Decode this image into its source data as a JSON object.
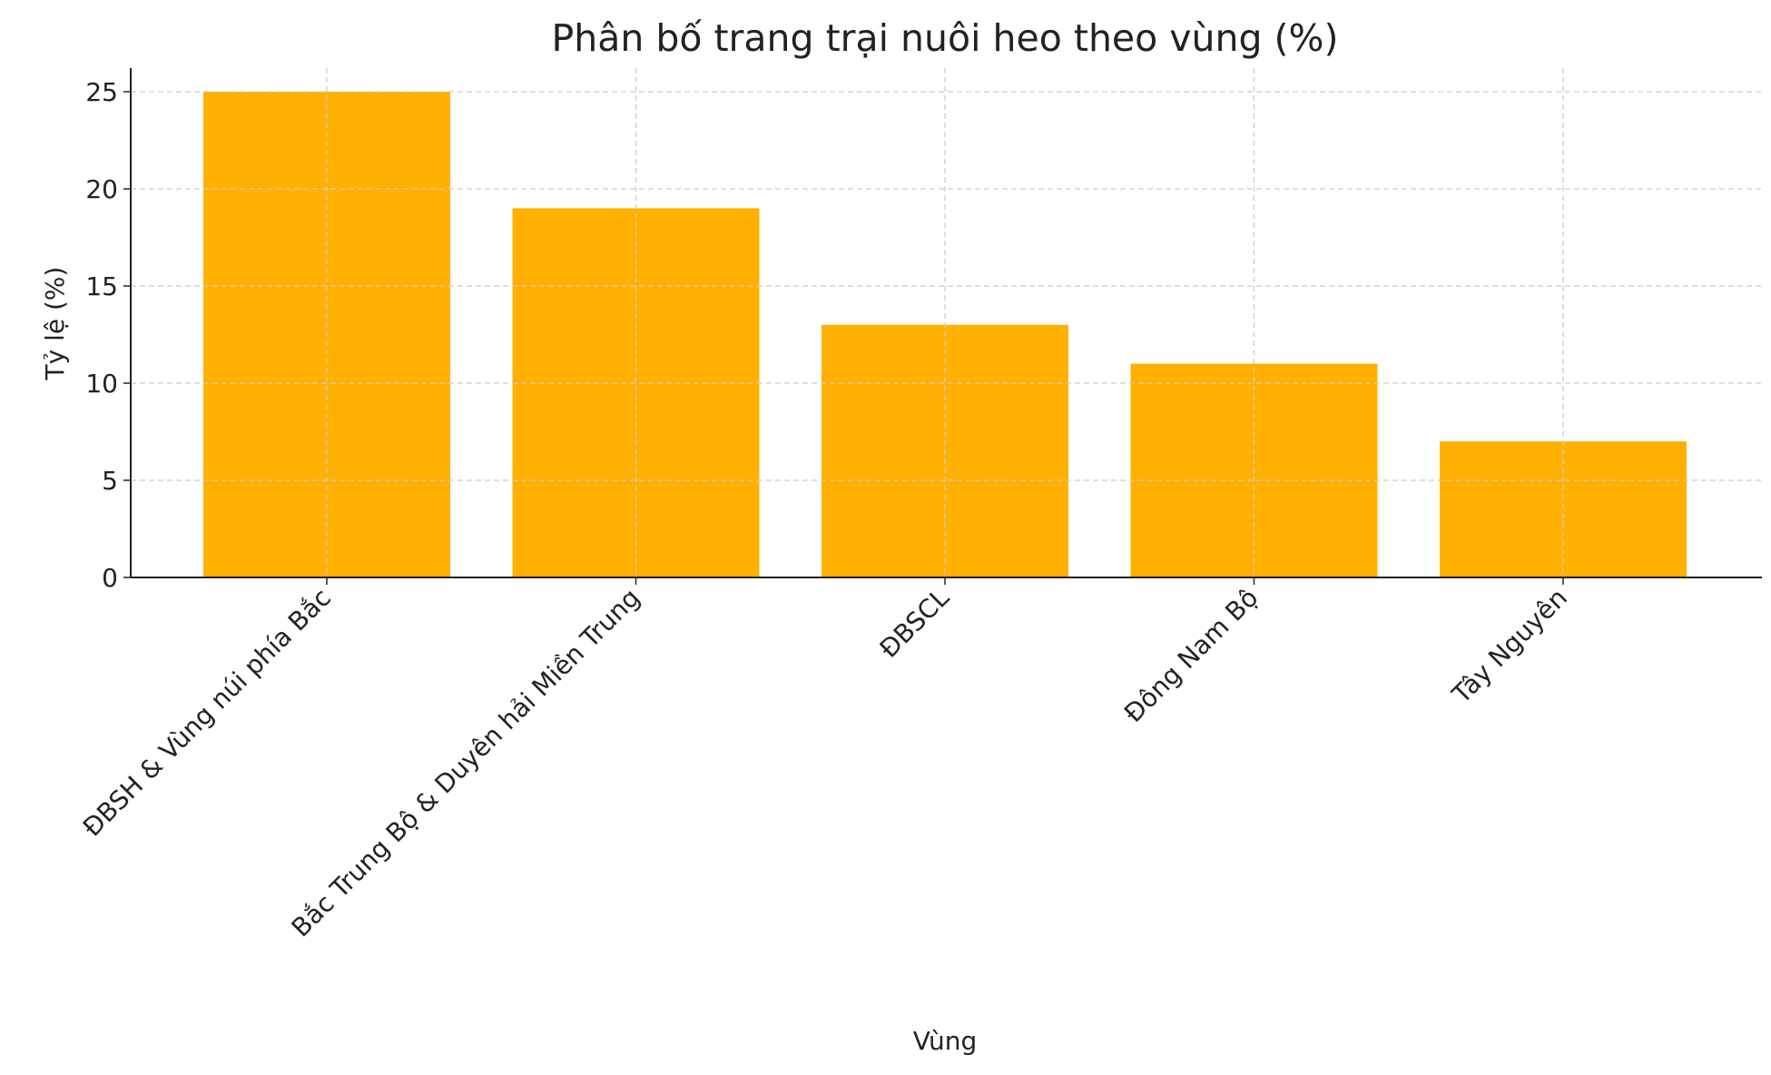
{
  "chart_data": {
    "type": "bar",
    "title": "Phân bố trang trại nuôi heo theo vùng (%)",
    "xlabel": "Vùng",
    "ylabel": "Tỷ lệ (%)",
    "categories": [
      "ĐBSH & Vùng núi phía Bắc",
      "Bắc Trung Bộ & Duyên hải Miền Trung",
      "ĐBSCL",
      "Đông Nam Bộ",
      "Tây Nguyên"
    ],
    "values": [
      25,
      19,
      13,
      11,
      7
    ],
    "ylim": [
      0,
      26.25
    ],
    "yticks": [
      0,
      5,
      10,
      15,
      20,
      25
    ],
    "grid": true,
    "bar_color": "#FFB000",
    "x_tick_rotation": 45
  }
}
